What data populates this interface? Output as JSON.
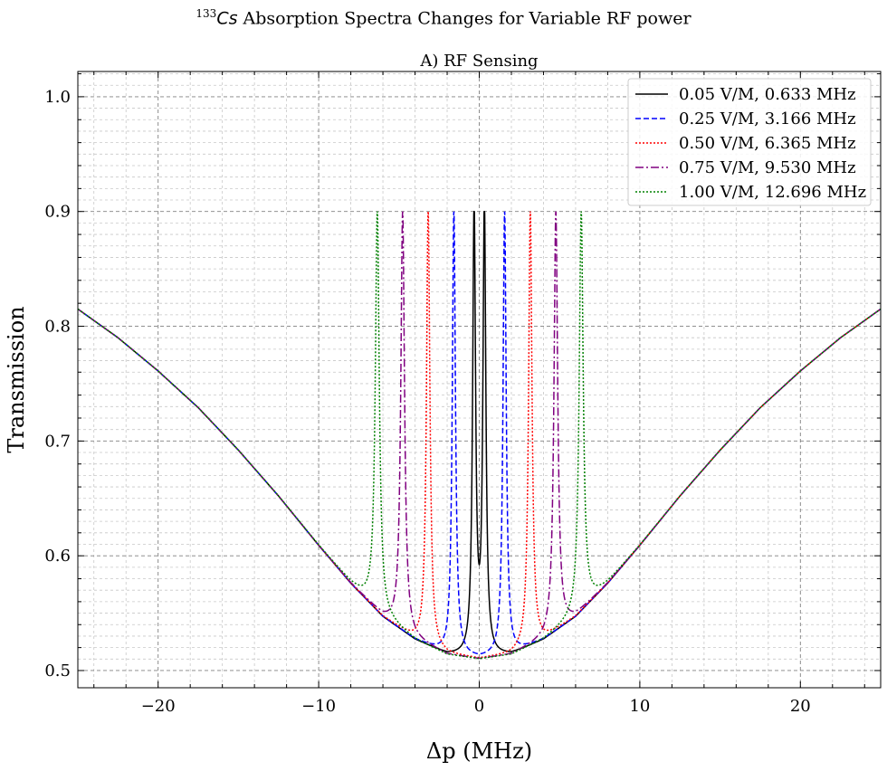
{
  "figure": {
    "suptitle_super": "133",
    "suptitle_element": "Cs",
    "suptitle_rest": " Absorption Spectra Changes for Variable RF power"
  },
  "chart_data": {
    "type": "line",
    "title": "A) RF Sensing",
    "xlabel": "Δp (MHz)",
    "ylabel": "Transmission",
    "xlim": [
      -25,
      25
    ],
    "ylim": [
      0.485,
      1.022
    ],
    "xticks": [
      -20,
      -10,
      0,
      10,
      20
    ],
    "xtick_labels": [
      "−20",
      "−10",
      "0",
      "10",
      "20"
    ],
    "yticks": [
      0.5,
      0.6,
      0.7,
      0.8,
      0.9,
      1.0
    ],
    "ytick_labels": [
      "0.5",
      "0.6",
      "0.7",
      "0.8",
      "0.9",
      "1.0"
    ],
    "grid": true,
    "legend_position": "top-right",
    "baseline_curve": {
      "x": [
        -25,
        -22.5,
        -20,
        -17.5,
        -15,
        -12.5,
        -10,
        -8,
        -6,
        -4,
        -2,
        0,
        2,
        4,
        6,
        8,
        10,
        12.5,
        15,
        17.5,
        20,
        22.5,
        25
      ],
      "y": [
        0.815,
        0.79,
        0.761,
        0.729,
        0.692,
        0.652,
        0.609,
        0.576,
        0.547,
        0.527,
        0.514,
        0.51,
        0.514,
        0.527,
        0.547,
        0.576,
        0.609,
        0.652,
        0.692,
        0.729,
        0.761,
        0.79,
        0.815
      ]
    },
    "series": [
      {
        "name": "0.05 V/M, 0.633 MHz",
        "color": "#000000",
        "dash": "solid",
        "peaks_x": [
          -0.32,
          0.32
        ],
        "peak_y": 0.9,
        "dip_y": 0.566
      },
      {
        "name": "0.25 V/M, 3.166 MHz",
        "color": "#0000ff",
        "dash": "dashed",
        "peaks_x": [
          -1.58,
          1.58
        ],
        "peak_y": 0.9,
        "dip_y": 0.513
      },
      {
        "name": "0.50 V/M, 6.365 MHz",
        "color": "#ff0000",
        "dash": "dotted",
        "peaks_x": [
          -3.18,
          3.18
        ],
        "peak_y": 0.9,
        "dip_y": 0.511
      },
      {
        "name": "0.75 V/M, 9.530 MHz",
        "color": "#800080",
        "dash": "dashdot",
        "peaks_x": [
          -4.77,
          4.77
        ],
        "peak_y": 0.9,
        "dip_y": 0.511
      },
      {
        "name": "1.00 V/M, 12.696 MHz",
        "color": "#008000",
        "dash": "dotted",
        "peaks_x": [
          -6.35,
          6.35
        ],
        "peak_y": 0.9,
        "dip_y": 0.511
      }
    ]
  }
}
